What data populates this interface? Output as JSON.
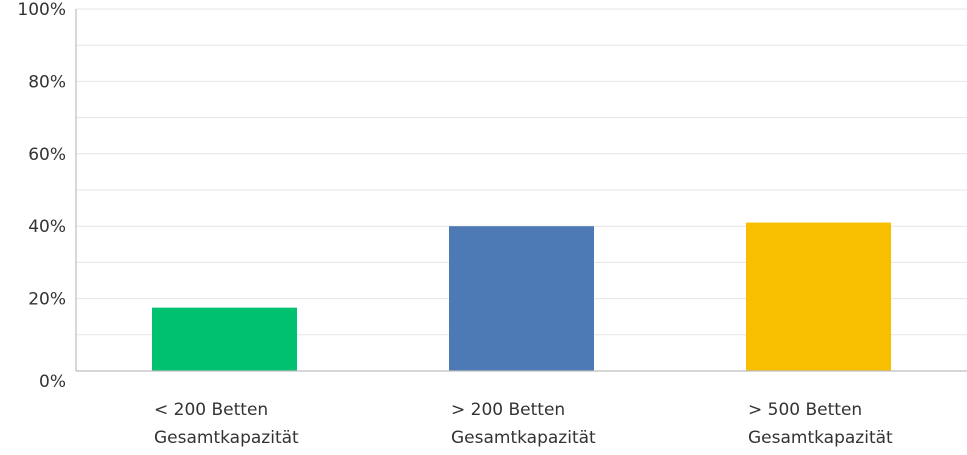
{
  "chart_data": {
    "type": "bar",
    "title": "",
    "xlabel": "",
    "ylabel": "",
    "ylim": [
      0,
      100
    ],
    "y_unit": "%",
    "y_ticks": [
      "0%",
      "20%",
      "40%",
      "60%",
      "80%",
      "100%"
    ],
    "grid": true,
    "categories": [
      [
        "< 200 Betten",
        "Gesamtkapazität"
      ],
      [
        "> 200 Betten",
        "Gesamtkapazität"
      ],
      [
        "> 500 Betten",
        "Gesamtkapazität"
      ]
    ],
    "values": [
      17.5,
      40,
      41
    ],
    "colors": [
      "#00c170",
      "#4d7ab5",
      "#f8bf00"
    ]
  }
}
